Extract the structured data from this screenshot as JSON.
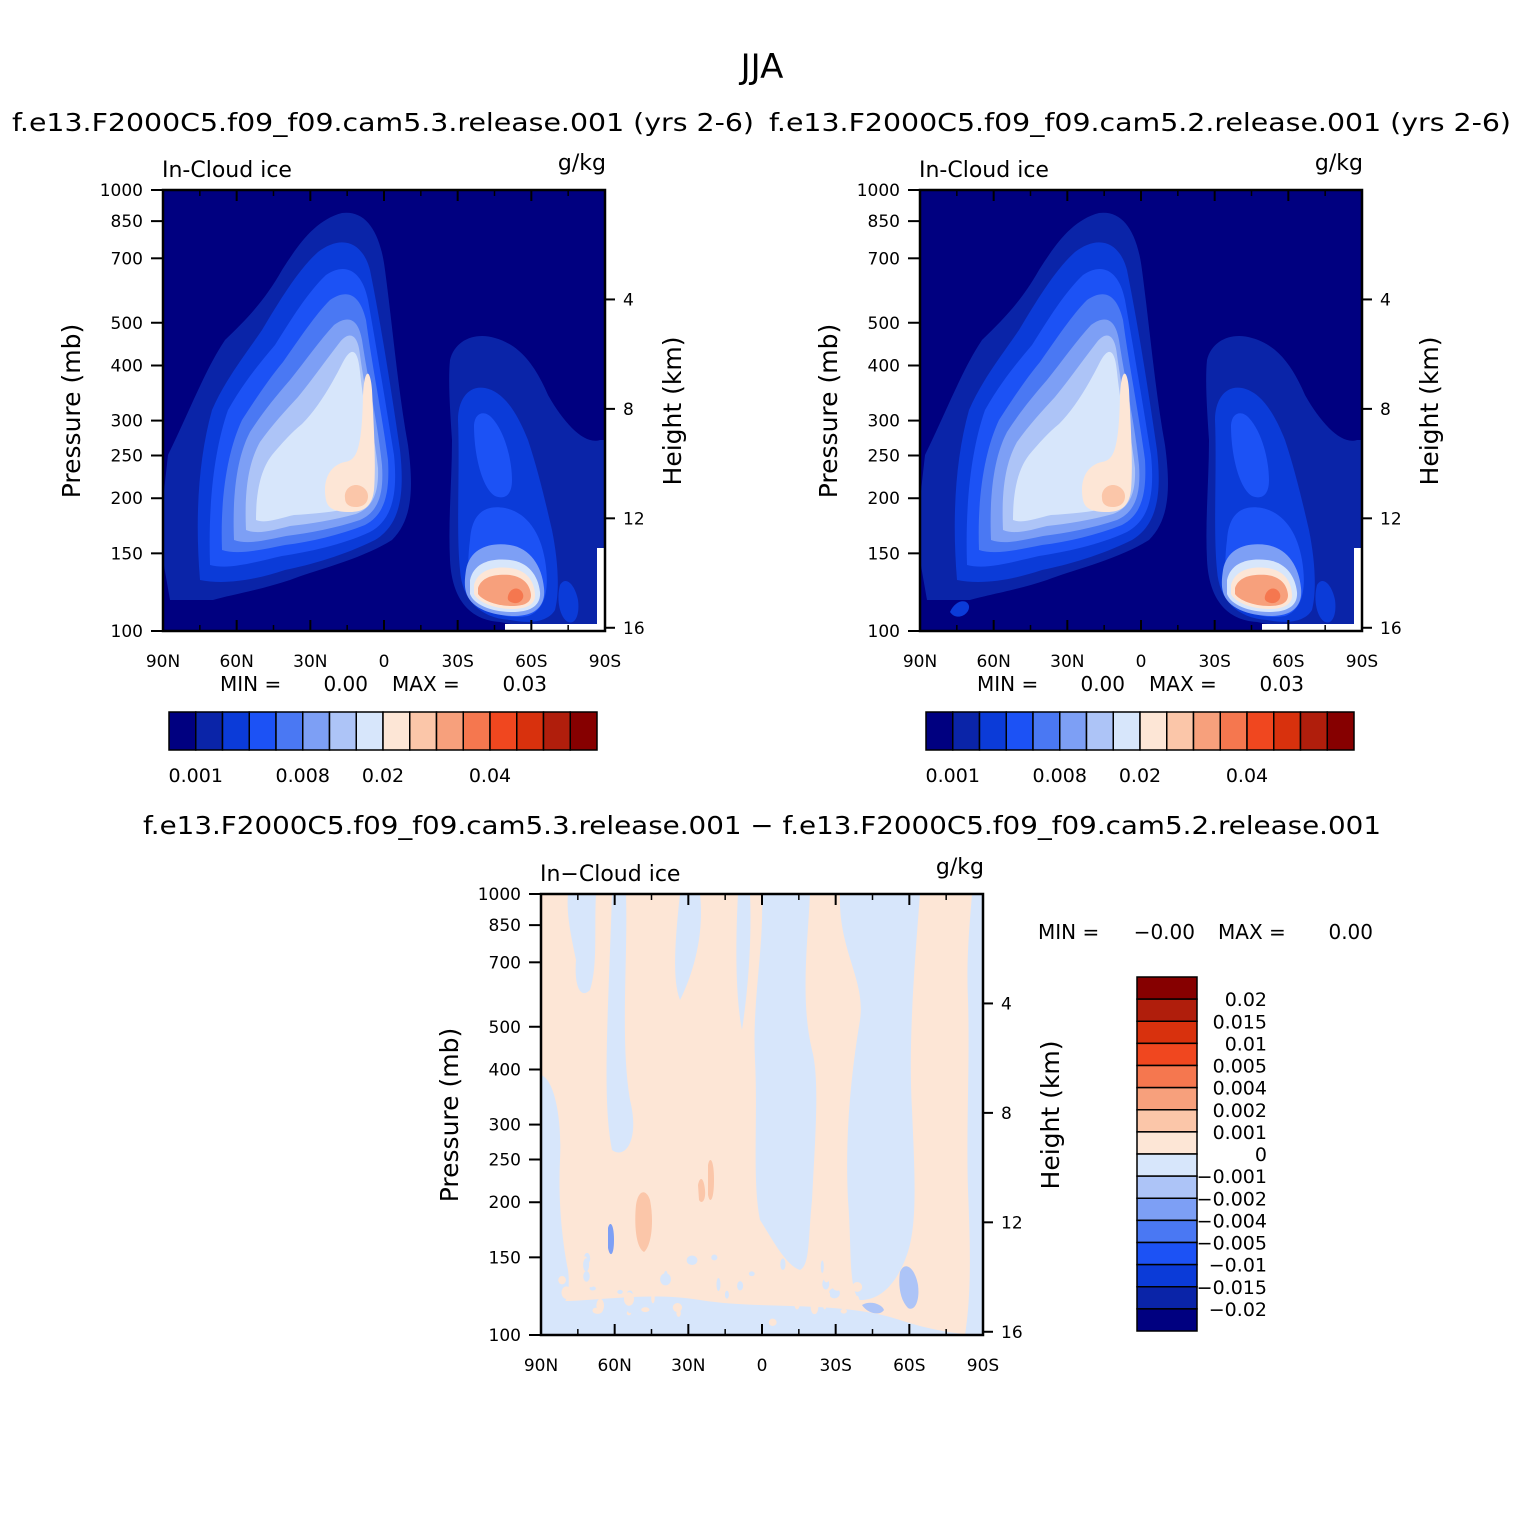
{
  "figure": {
    "season": "JJA",
    "colors": {
      "abs_scale": [
        "#000080",
        "#0a24a8",
        "#0b3bd8",
        "#1c52f5",
        "#4a78f3",
        "#7d9ff5",
        "#adc4f7",
        "#d7e6fb",
        "#fde6d6",
        "#fbc6a9",
        "#f7a07c",
        "#f5774f",
        "#f0471f",
        "#d8310d",
        "#b01e0c",
        "#860000"
      ],
      "diff_scale": [
        "#000080",
        "#0a24a8",
        "#0b3bd8",
        "#1c52f5",
        "#4a78f3",
        "#7d9ff5",
        "#adc4f7",
        "#d7e6fb",
        "#fde6d6",
        "#fbc6a9",
        "#f7a07c",
        "#f5774f",
        "#f0471f",
        "#d8310d",
        "#b01e0c",
        "#860000"
      ]
    }
  },
  "chart_data": [
    {
      "type": "heatmap",
      "title": "f.e13.F2000C5.f09_f09.cam5.3.release.001 (yrs 2-6)",
      "left_string": "In-Cloud ice",
      "right_string": "g/kg",
      "xlabel": "",
      "ylabel": "Pressure (mb)",
      "y2label": "Height (km)",
      "x_ticks": [
        "90N",
        "60N",
        "30N",
        "0",
        "30S",
        "60S",
        "90S"
      ],
      "y_ticks": [
        "100",
        "150",
        "200",
        "250",
        "300",
        "400",
        "500",
        "700",
        "850",
        "1000"
      ],
      "y2_ticks": [
        "16",
        "12",
        "8",
        "4"
      ],
      "xlim": [
        90,
        -90
      ],
      "ylim": [
        1000,
        100
      ],
      "min_text": "MIN =",
      "min_value": "0.00",
      "max_text": "MAX =",
      "max_value": "0.03",
      "colorbar_labels": [
        "0.001",
        "0.008",
        "0.02",
        "0.04"
      ],
      "colorbar_levels": [
        0.001,
        0.002,
        0.004,
        0.006,
        0.008,
        0.01,
        0.015,
        0.02,
        0.025,
        0.03,
        0.035,
        0.04,
        0.045,
        0.05,
        0.06
      ]
    },
    {
      "type": "heatmap",
      "title": "f.e13.F2000C5.f09_f09.cam5.2.release.001 (yrs 2-6)",
      "left_string": "In-Cloud ice",
      "right_string": "g/kg",
      "xlabel": "",
      "ylabel": "Pressure (mb)",
      "y2label": "Height (km)",
      "x_ticks": [
        "90N",
        "60N",
        "30N",
        "0",
        "30S",
        "60S",
        "90S"
      ],
      "y_ticks": [
        "100",
        "150",
        "200",
        "250",
        "300",
        "400",
        "500",
        "700",
        "850",
        "1000"
      ],
      "y2_ticks": [
        "16",
        "12",
        "8",
        "4"
      ],
      "xlim": [
        90,
        -90
      ],
      "ylim": [
        1000,
        100
      ],
      "min_text": "MIN =",
      "min_value": "0.00",
      "max_text": "MAX =",
      "max_value": "0.03",
      "colorbar_labels": [
        "0.001",
        "0.008",
        "0.02",
        "0.04"
      ],
      "colorbar_levels": [
        0.001,
        0.002,
        0.004,
        0.006,
        0.008,
        0.01,
        0.015,
        0.02,
        0.025,
        0.03,
        0.035,
        0.04,
        0.045,
        0.05,
        0.06
      ]
    },
    {
      "type": "heatmap",
      "title": "f.e13.F2000C5.f09_f09.cam5.3.release.001 − f.e13.F2000C5.f09_f09.cam5.2.release.001",
      "left_string": "In−Cloud ice",
      "right_string": "g/kg",
      "xlabel": "",
      "ylabel": "Pressure (mb)",
      "y2label": "Height (km)",
      "x_ticks": [
        "90N",
        "60N",
        "30N",
        "0",
        "30S",
        "60S",
        "90S"
      ],
      "y_ticks": [
        "100",
        "150",
        "200",
        "250",
        "300",
        "400",
        "500",
        "700",
        "850",
        "1000"
      ],
      "y2_ticks": [
        "16",
        "12",
        "8",
        "4"
      ],
      "xlim": [
        90,
        -90
      ],
      "ylim": [
        1000,
        100
      ],
      "min_text": "MIN =",
      "min_value": "−0.00",
      "max_text": "MAX =",
      "max_value": "0.00",
      "colorbar_labels": [
        "0.02",
        "0.015",
        "0.01",
        "0.005",
        "0.004",
        "0.002",
        "0.001",
        "0",
        "−0.001",
        "−0.002",
        "−0.004",
        "−0.005",
        "−0.01",
        "−0.015",
        "−0.02"
      ]
    }
  ]
}
